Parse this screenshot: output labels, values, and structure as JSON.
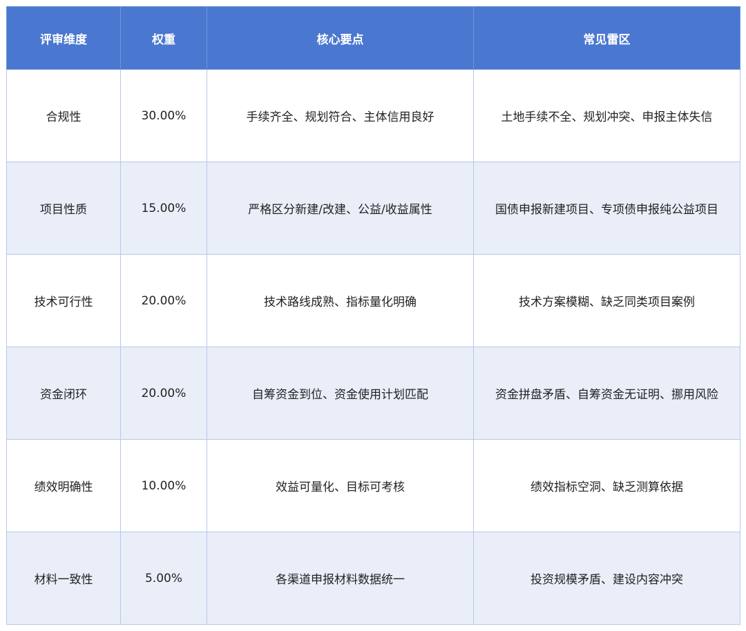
{
  "table": {
    "header": [
      "评审维度",
      "权重",
      "核心要点",
      "常见雷区"
    ],
    "rows": [
      [
        "合规性",
        "30.00%",
        "手续齐全、规划符合、主体信用良好",
        "土地手续不全、规划冲突、申报主体失信"
      ],
      [
        "项目性质",
        "15.00%",
        "严格区分新建/改建、公益/收益属性",
        "国债申报新建项目、专项债申报纯公益项目"
      ],
      [
        "技术可行性",
        "20.00%",
        "技术路线成熟、指标量化明确",
        "技术方案模糊、缺乏同类项目案例"
      ],
      [
        "资金闭环",
        "20.00%",
        "自筹资金到位、资金使用计划匹配",
        "资金拼盘矛盾、自筹资金无证明、挪用风险"
      ],
      [
        "绩效明确性",
        "10.00%",
        "效益可量化、目标可考核",
        "绩效指标空洞、缺乏测算依据"
      ],
      [
        "材料一致性",
        "5.00%",
        "各渠道申报材料数据统一",
        "投资规模矛盾、建设内容冲突"
      ]
    ]
  }
}
